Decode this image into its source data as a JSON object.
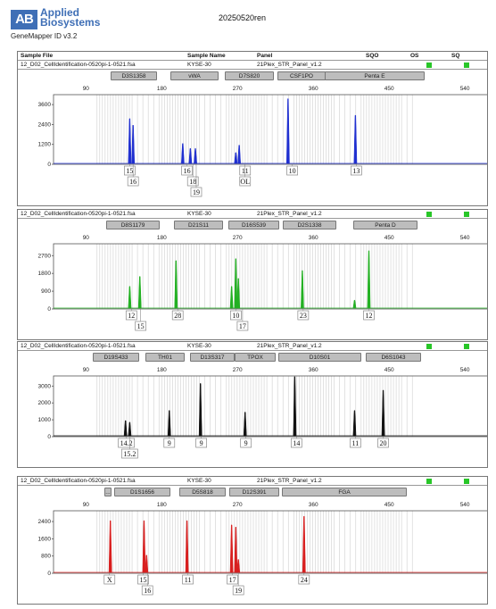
{
  "logo": {
    "mark": "AB",
    "line1": "Applied",
    "line2": "Biosystems",
    "app": "GeneMapper ID v3.2"
  },
  "title": "20250520ren",
  "headers": {
    "sample_file": "Sample File",
    "sample_name": "Sample Name",
    "panel": "Panel",
    "sqo": "SQO",
    "os": "OS",
    "sq": "SQ"
  },
  "qc_color": "#28c628",
  "samples": [
    {
      "file": "12_D02_CellIdentification-0520pi-1-0521.fsa",
      "name": "KYSE-30",
      "panel": "21Plex_STR_Panel_v1.2",
      "color": "#1f2fd0",
      "markers": [
        {
          "label": "D3S1358"
        },
        {
          "label": "vWA"
        },
        {
          "label": "D7S820"
        },
        {
          "label": "CSF1PO"
        },
        {
          "label": "Penta E"
        }
      ],
      "x_ticks": [
        "90",
        "180",
        "270",
        "360",
        "450",
        "540"
      ],
      "y_ticks": [
        "3600",
        "2400",
        "1200",
        "0"
      ],
      "y_max": 4200,
      "peaks": [
        {
          "x": 142,
          "h": 2700
        },
        {
          "x": 146,
          "h": 2300
        },
        {
          "x": 205,
          "h": 1200
        },
        {
          "x": 214,
          "h": 900
        },
        {
          "x": 220,
          "h": 900
        },
        {
          "x": 268,
          "h": 650
        },
        {
          "x": 272,
          "h": 1100
        },
        {
          "x": 330,
          "h": 3900
        },
        {
          "x": 410,
          "h": 2900
        }
      ],
      "alleles": [
        {
          "label": "15",
          "x": 142,
          "row": 0
        },
        {
          "label": "16",
          "x": 146,
          "row": 1
        },
        {
          "label": "16",
          "x": 210,
          "row": 0
        },
        {
          "label": "18",
          "x": 217,
          "row": 1
        },
        {
          "label": "19",
          "x": 221,
          "row": 2
        },
        {
          "label": "11",
          "x": 279,
          "row": 0
        },
        {
          "label": "OL",
          "x": 279,
          "row": 1
        },
        {
          "label": "10",
          "x": 335,
          "row": 0
        },
        {
          "label": "13",
          "x": 411,
          "row": 0
        }
      ]
    },
    {
      "file": "12_D02_CellIdentification-0520pi-1-0521.fsa",
      "name": "KYSE-30",
      "panel": "21Plex_STR_Panel_v1.2",
      "color": "#22b022",
      "markers": [
        {
          "label": "D8S1179"
        },
        {
          "label": "D21S11"
        },
        {
          "label": "D16S539"
        },
        {
          "label": "D2S1338"
        },
        {
          "label": "Penta D"
        }
      ],
      "x_ticks": [
        "90",
        "180",
        "270",
        "360",
        "450",
        "540"
      ],
      "y_ticks": [
        "2700",
        "1800",
        "900",
        "0"
      ],
      "y_max": 3300,
      "peaks": [
        {
          "x": 142,
          "h": 1100
        },
        {
          "x": 154,
          "h": 1600
        },
        {
          "x": 197,
          "h": 2400
        },
        {
          "x": 263,
          "h": 1100
        },
        {
          "x": 268,
          "h": 2500
        },
        {
          "x": 271,
          "h": 1500
        },
        {
          "x": 347,
          "h": 1900
        },
        {
          "x": 409,
          "h": 400
        },
        {
          "x": 426,
          "h": 2900
        }
      ],
      "alleles": [
        {
          "label": "12",
          "x": 144,
          "row": 0
        },
        {
          "label": "15",
          "x": 155,
          "row": 1
        },
        {
          "label": "28",
          "x": 199,
          "row": 0
        },
        {
          "label": "10",
          "x": 268,
          "row": 0
        },
        {
          "label": "17",
          "x": 276,
          "row": 1
        },
        {
          "label": "23",
          "x": 348,
          "row": 0
        },
        {
          "label": "12",
          "x": 426,
          "row": 0
        }
      ]
    },
    {
      "file": "12_D02_CellIdentification-0520pi-1-0521.fsa",
      "name": "KYSE-30",
      "panel": "21Plex_STR_Panel_v1.2",
      "color": "#111111",
      "markers": [
        {
          "label": "D19S433"
        },
        {
          "label": "TH01"
        },
        {
          "label": "D13S317"
        },
        {
          "label": "TPOX"
        },
        {
          "label": "D10S01"
        },
        {
          "label": "D6S1043"
        }
      ],
      "x_ticks": [
        "90",
        "180",
        "270",
        "360",
        "450",
        "540"
      ],
      "y_ticks": [
        "3000",
        "2000",
        "1000",
        "0"
      ],
      "y_max": 3600,
      "peaks": [
        {
          "x": 137,
          "h": 900
        },
        {
          "x": 142,
          "h": 800
        },
        {
          "x": 189,
          "h": 1500
        },
        {
          "x": 226,
          "h": 3100
        },
        {
          "x": 279,
          "h": 1400
        },
        {
          "x": 338,
          "h": 3500
        },
        {
          "x": 409,
          "h": 1500
        },
        {
          "x": 443,
          "h": 2700
        }
      ],
      "alleles": [
        {
          "label": "14.2",
          "x": 138,
          "row": 0
        },
        {
          "label": "15.2",
          "x": 142,
          "row": 1
        },
        {
          "label": "9",
          "x": 189,
          "row": 0
        },
        {
          "label": "9",
          "x": 227,
          "row": 0
        },
        {
          "label": "9",
          "x": 280,
          "row": 0
        },
        {
          "label": "14",
          "x": 340,
          "row": 0
        },
        {
          "label": "11",
          "x": 410,
          "row": 0
        },
        {
          "label": "20",
          "x": 443,
          "row": 0
        }
      ]
    },
    {
      "file": "12_D02_CellIdentification-0520pi-1-0521.fsa",
      "name": "KYSE-30",
      "panel": "21Plex_STR_Panel_v1.2",
      "color": "#d81e1e",
      "markers": [
        {
          "label": "..."
        },
        {
          "label": "D1S1656"
        },
        {
          "label": "D5S818"
        },
        {
          "label": "D12S391"
        },
        {
          "label": "FGA"
        }
      ],
      "x_ticks": [
        "90",
        "180",
        "270",
        "360",
        "450",
        "540"
      ],
      "y_ticks": [
        "2400",
        "1600",
        "800",
        "0"
      ],
      "y_max": 2900,
      "peaks": [
        {
          "x": 119,
          "h": 2400
        },
        {
          "x": 159,
          "h": 2400
        },
        {
          "x": 162,
          "h": 800
        },
        {
          "x": 210,
          "h": 2400
        },
        {
          "x": 263,
          "h": 2200
        },
        {
          "x": 268,
          "h": 2100
        },
        {
          "x": 271,
          "h": 600
        },
        {
          "x": 349,
          "h": 2600
        }
      ],
      "alleles": [
        {
          "label": "X",
          "x": 118,
          "row": 0
        },
        {
          "label": "15",
          "x": 158,
          "row": 0
        },
        {
          "label": "16",
          "x": 163,
          "row": 1
        },
        {
          "label": "11",
          "x": 211,
          "row": 0
        },
        {
          "label": "17",
          "x": 264,
          "row": 0
        },
        {
          "label": "19",
          "x": 271,
          "row": 1
        },
        {
          "label": "24",
          "x": 349,
          "row": 0
        }
      ]
    }
  ]
}
